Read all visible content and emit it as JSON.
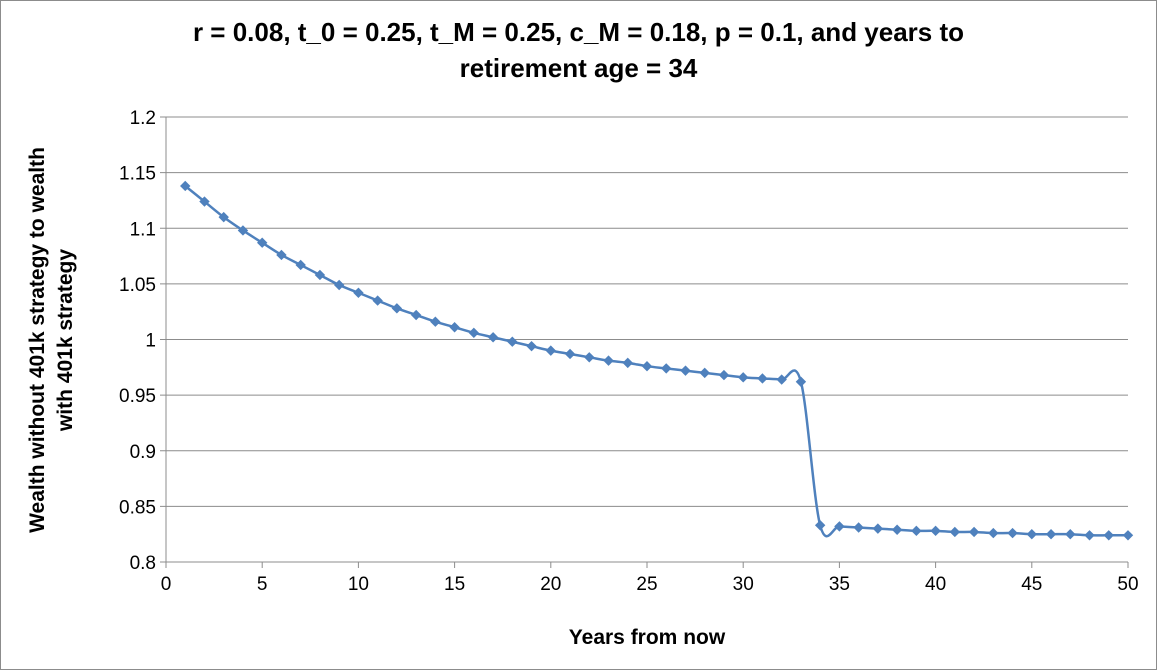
{
  "chart_data": {
    "type": "line",
    "title_line1": "r = 0.08, t_0 = 0.25, t_M = 0.25, c_M = 0.18, p = 0.1, and years to",
    "title_line2": "retirement age = 34",
    "xlabel": "Years from now",
    "ylabel_line1": "Wealth without 401k strategy to wealth",
    "ylabel_line2": "with 401k strategy",
    "xlim": [
      0,
      50
    ],
    "ylim": [
      0.8,
      1.2
    ],
    "x_ticks": [
      "0",
      "5",
      "10",
      "15",
      "20",
      "25",
      "30",
      "35",
      "40",
      "45",
      "50"
    ],
    "y_ticks": [
      "0.8",
      "0.85",
      "0.9",
      "0.95",
      "1",
      "1.05",
      "1.1",
      "1.15",
      "1.2"
    ],
    "grid": "horizontal",
    "legend": "none",
    "colors": {
      "series": "#4f81bd",
      "grid": "#8c8c8c",
      "axis": "#8c8c8c"
    },
    "x": [
      1,
      2,
      3,
      4,
      5,
      6,
      7,
      8,
      9,
      10,
      11,
      12,
      13,
      14,
      15,
      16,
      17,
      18,
      19,
      20,
      21,
      22,
      23,
      24,
      25,
      26,
      27,
      28,
      29,
      30,
      31,
      32,
      33,
      34,
      35,
      36,
      37,
      38,
      39,
      40,
      41,
      42,
      43,
      44,
      45,
      46,
      47,
      48,
      49,
      50
    ],
    "y": [
      1.138,
      1.124,
      1.11,
      1.098,
      1.087,
      1.076,
      1.067,
      1.058,
      1.049,
      1.042,
      1.035,
      1.028,
      1.022,
      1.016,
      1.011,
      1.006,
      1.002,
      0.998,
      0.994,
      0.99,
      0.987,
      0.984,
      0.981,
      0.979,
      0.976,
      0.974,
      0.972,
      0.97,
      0.968,
      0.966,
      0.965,
      0.964,
      0.962,
      0.833,
      0.832,
      0.831,
      0.83,
      0.829,
      0.828,
      0.828,
      0.827,
      0.827,
      0.826,
      0.826,
      0.825,
      0.825,
      0.825,
      0.824,
      0.824,
      0.824
    ]
  }
}
